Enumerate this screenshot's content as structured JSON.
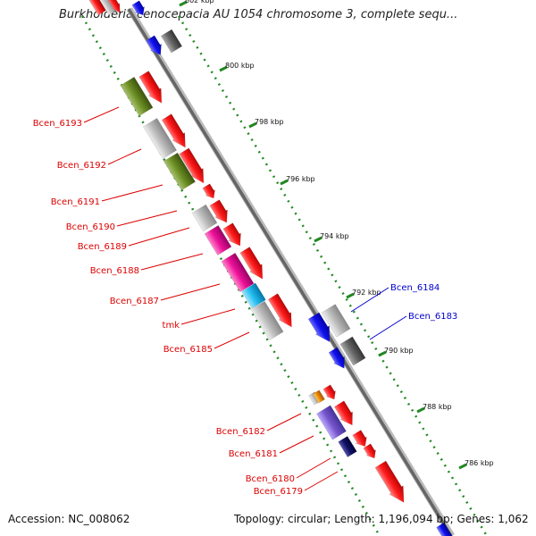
{
  "title": "Burkholderia cenocepacia AU 1054 chromosome 3, complete sequ...",
  "footer": {
    "accession": "Accession: NC_008062",
    "info": "Topology: circular; Length: 1,196,094 bp; Genes: 1,062"
  },
  "ruler": {
    "ticks": [
      "802 kbp",
      "800 kbp",
      "798 kbp",
      "796 kbp",
      "794 kbp",
      "792 kbp",
      "790 kbp",
      "788 kbp",
      "786 kbp"
    ]
  },
  "genes": {
    "left": [
      "Bcen_6193",
      "Bcen_6192",
      "Bcen_6191",
      "Bcen_6190",
      "Bcen_6189",
      "Bcen_6188",
      "Bcen_6187",
      "tmk",
      "Bcen_6185",
      "Bcen_6182",
      "Bcen_6181",
      "Bcen_6180",
      "Bcen_6179"
    ],
    "right": [
      "Bcen_6184",
      "Bcen_6183"
    ]
  },
  "colors": {
    "forward_cds": "#ee1111",
    "reverse_cds_blue": "#1111ee",
    "olive": "#6b8e23",
    "magenta": "#ee1199",
    "cyan": "#22bbee",
    "grey": "#bbbbbb",
    "dark_grey": "#666666",
    "orange": "#ee8800",
    "lavender": "#7755cc",
    "navy": "#111166",
    "label_red": "#dd0000",
    "label_blue": "#0000cc",
    "ruler_green": "#228822"
  }
}
